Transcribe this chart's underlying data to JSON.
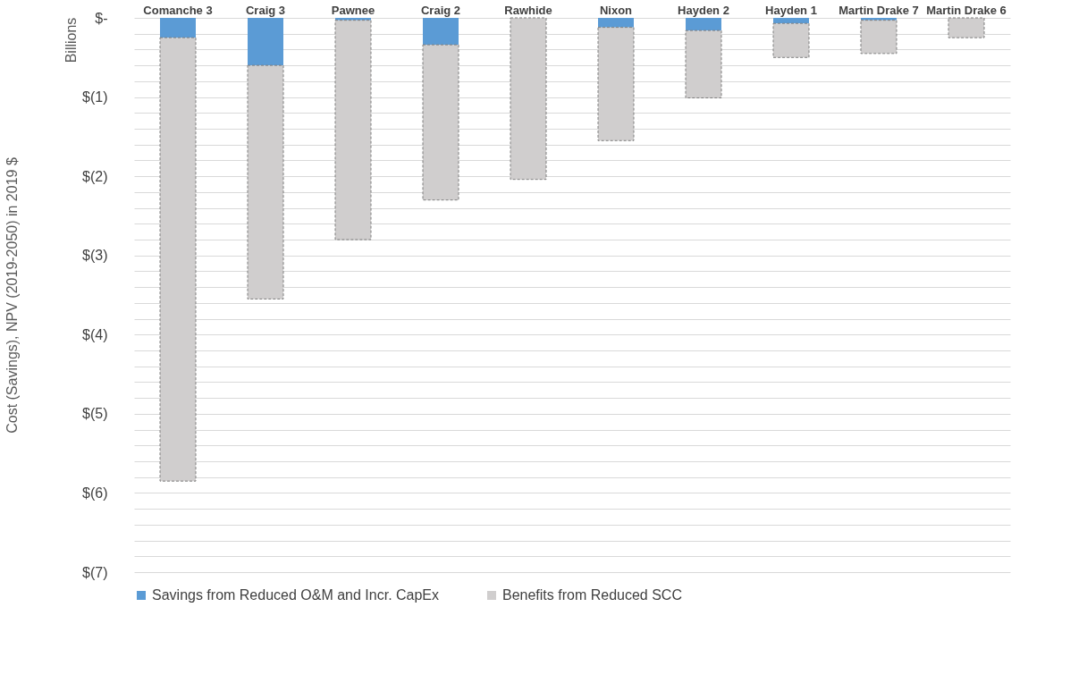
{
  "chart_data": {
    "type": "bar",
    "stacked": true,
    "ylabel": "Cost (Savings), NPV (2019-2050) in 2019 $",
    "annotations": [
      "Billions"
    ],
    "categories": [
      "Comanche 3",
      "Craig 3",
      "Pawnee",
      "Craig 2",
      "Rawhide",
      "Nixon",
      "Hayden 2",
      "Hayden 1",
      "Martin Drake 7",
      "Martin Drake 6"
    ],
    "series": [
      {
        "name": "Savings from Reduced O&M and Incr. CapEx",
        "color": "#5b9bd5",
        "values": [
          -0.25,
          -0.6,
          -0.03,
          -0.34,
          null,
          -0.12,
          -0.16,
          -0.07,
          -0.03,
          0
        ]
      },
      {
        "name": "Benefits from Reduced SCC",
        "color": "#d0cece",
        "values": [
          -5.6,
          -2.95,
          -2.77,
          -1.96,
          -2.04,
          -1.43,
          -0.85,
          -0.43,
          -0.42,
          -0.25
        ]
      }
    ],
    "ylim": [
      -7,
      0
    ],
    "yticks": [
      {
        "value": 0,
        "label": "$-"
      },
      {
        "value": -0.2,
        "label": null
      },
      {
        "value": -0.4,
        "label": null
      },
      {
        "value": -0.6,
        "label": null
      },
      {
        "value": -0.8,
        "label": null
      },
      {
        "value": -1,
        "label": "$(1)"
      },
      {
        "value": -1.2,
        "label": null
      },
      {
        "value": -1.4,
        "label": null
      },
      {
        "value": -1.6,
        "label": null
      },
      {
        "value": -1.8,
        "label": null
      },
      {
        "value": -2,
        "label": "$(2)"
      },
      {
        "value": -2.2,
        "label": null
      },
      {
        "value": -2.4,
        "label": null
      },
      {
        "value": -2.6,
        "label": null
      },
      {
        "value": -2.8,
        "label": null
      },
      {
        "value": -3,
        "label": "$(3)"
      },
      {
        "value": -3.2,
        "label": null
      },
      {
        "value": -3.4,
        "label": null
      },
      {
        "value": -3.6,
        "label": null
      },
      {
        "value": -3.8,
        "label": null
      },
      {
        "value": -4,
        "label": "$(4)"
      },
      {
        "value": -4.2,
        "label": null
      },
      {
        "value": -4.4,
        "label": null
      },
      {
        "value": -4.6,
        "label": null
      },
      {
        "value": -4.8,
        "label": null
      },
      {
        "value": -5,
        "label": "$(5)"
      },
      {
        "value": -5.2,
        "label": null
      },
      {
        "value": -5.4,
        "label": null
      },
      {
        "value": -5.6,
        "label": null
      },
      {
        "value": -5.8,
        "label": null
      },
      {
        "value": -6,
        "label": "$(6)"
      },
      {
        "value": -6.2,
        "label": null
      },
      {
        "value": -6.4,
        "label": null
      },
      {
        "value": -6.6,
        "label": null
      },
      {
        "value": -6.8,
        "label": null
      },
      {
        "value": -7,
        "label": "$(7)"
      }
    ],
    "grid": true,
    "legend": "bottom"
  }
}
